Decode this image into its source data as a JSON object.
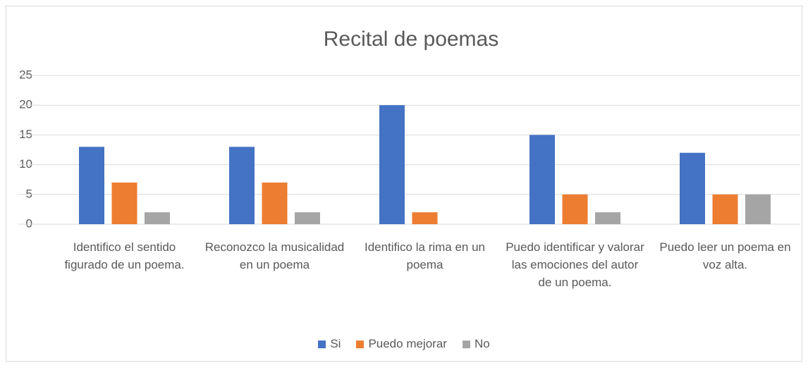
{
  "chart_data": {
    "type": "bar",
    "title": "Recital de poemas",
    "categories": [
      "Identifico el sentido figurado de un poema.",
      "Reconozco la musicalidad en un poema",
      "Identifico la rima en un poema",
      "Puedo identificar y valorar las emociones del autor de un poema.",
      "Puedo leer un poema en voz alta."
    ],
    "series": [
      {
        "name": "Si",
        "color": "#4472c4",
        "values": [
          13,
          13,
          20,
          15,
          12
        ]
      },
      {
        "name": "Puedo mejorar",
        "color": "#ed7d31",
        "values": [
          7,
          7,
          2,
          5,
          5
        ]
      },
      {
        "name": "No",
        "color": "#a5a5a5",
        "values": [
          2,
          2,
          0,
          2,
          5
        ]
      }
    ],
    "ylim": [
      0,
      25
    ],
    "yticks": [
      0,
      5,
      10,
      15,
      20,
      25
    ],
    "grid": true,
    "legend": "bottom"
  }
}
